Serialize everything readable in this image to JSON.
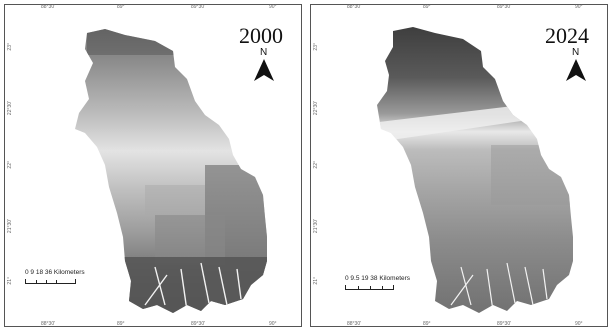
{
  "panels": [
    {
      "year": "2000",
      "north": "N",
      "scale_label": "0 9 18 36 Kilometers",
      "top_ticks": [
        "88°30'",
        "89°",
        "89°30'",
        "90°"
      ],
      "left_ticks": [
        "23°",
        "22°30'",
        "22°",
        "21°30'",
        "21°"
      ]
    },
    {
      "year": "2024",
      "north": "N",
      "scale_label": "0 9.5 19 38 Kilometers",
      "top_ticks": [
        "88°30'",
        "89°",
        "89°30'",
        "90°"
      ],
      "left_ticks": [
        "23°",
        "22°30'",
        "22°",
        "21°30'",
        "21°"
      ]
    }
  ],
  "colors": {
    "dark": "#3a3a3a",
    "mid": "#8a8a8a",
    "light": "#e6e6e6",
    "frame": "#555555"
  },
  "icons": [
    "north-arrow-icon"
  ]
}
